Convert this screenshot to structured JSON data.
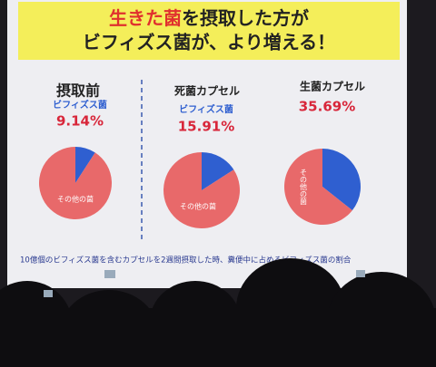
{
  "header": {
    "title_highlight": "生きた菌",
    "title_rest": "を摂取した方が",
    "title_line2": "ビフィズス菌が、より増える！"
  },
  "chart_data": [
    {
      "type": "pie",
      "title": "摂取前",
      "categories": [
        "ビフィズス菌",
        "その他の菌"
      ],
      "values": [
        9.14,
        90.86
      ],
      "value_labels": [
        "9.14%",
        null
      ],
      "colors": [
        "#2f5fd0",
        "#e8696a"
      ]
    },
    {
      "type": "pie",
      "title": "死菌カプセル",
      "categories": [
        "ビフィズス菌",
        "その他の菌"
      ],
      "values": [
        15.91,
        84.09
      ],
      "value_labels": [
        "15.91%",
        null
      ],
      "colors": [
        "#2f5fd0",
        "#e8696a"
      ]
    },
    {
      "type": "pie",
      "title": "生菌カプセル",
      "categories": [
        null,
        "その他の菌"
      ],
      "values": [
        35.69,
        64.31
      ],
      "value_labels": [
        "35.69%",
        null
      ],
      "colors": [
        "#2f5fd0",
        "#e8696a"
      ]
    }
  ],
  "footnote": "10億個のビフィズス菌を含むカプセルを2週間摂取した時、糞便中に占めるビフィズス菌の割合"
}
